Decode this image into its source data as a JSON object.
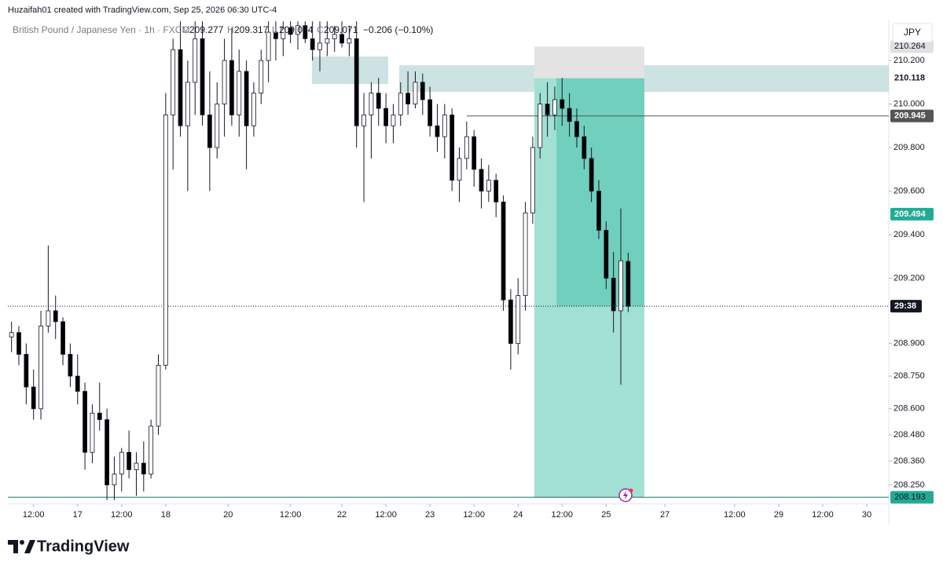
{
  "header": "Huzaifah01 created with TradingView.com, Sep 25, 2026 06:30 UTC-4",
  "brand": "TradingView",
  "chart_data": {
    "type": "candlestick",
    "title": "British Pound / Japanese Yen · 1h · FXCM",
    "currency": "JPY",
    "legend": [
      {
        "label": "O",
        "value": 209.277
      },
      {
        "label": "H",
        "value": 209.317
      },
      {
        "label": "L",
        "value": 209.044
      },
      {
        "label": "C",
        "value": 209.071
      }
    ],
    "change": "−0.206 (−0.10%)",
    "countdown": "29:38",
    "up_color": "#ffffff",
    "down_color": "#000000",
    "open": [
      208.93,
      208.95,
      208.85,
      208.7,
      208.6,
      208.98,
      209.05,
      209.0,
      208.85,
      208.75,
      208.68,
      208.4,
      208.58,
      208.55,
      208.25,
      208.3,
      208.4,
      208.32,
      208.35,
      208.3,
      208.52,
      208.8,
      209.95,
      210.25,
      209.9,
      210.1,
      210.3,
      209.95,
      209.8,
      210.0,
      210.2,
      209.95,
      210.15,
      209.9,
      210.05,
      210.2,
      210.33,
      210.3,
      210.35,
      210.32,
      210.36,
      210.3,
      210.25,
      210.28,
      210.3,
      210.32,
      210.28,
      210.3,
      209.9,
      209.95,
      210.05,
      209.98,
      209.9,
      209.95,
      210.05,
      210.0,
      210.1,
      210.02,
      209.9,
      209.85,
      209.95,
      209.65,
      209.75,
      209.85,
      209.7,
      209.6,
      209.65,
      209.55,
      209.1,
      208.9,
      209.12,
      209.5,
      209.8,
      210.0,
      209.95,
      210.02,
      209.98,
      209.92,
      209.85,
      209.75,
      209.6,
      209.42,
      209.2,
      209.05,
      209.277
    ],
    "high": [
      209.0,
      208.98,
      208.9,
      208.78,
      209.05,
      209.35,
      209.12,
      209.02,
      208.9,
      208.85,
      208.72,
      208.62,
      208.72,
      208.6,
      208.38,
      208.42,
      208.5,
      208.4,
      208.45,
      208.55,
      208.85,
      210.05,
      210.3,
      210.38,
      210.2,
      210.38,
      210.38,
      210.15,
      210.1,
      210.3,
      210.35,
      210.25,
      210.2,
      210.1,
      210.25,
      210.38,
      210.38,
      210.38,
      210.38,
      210.38,
      210.38,
      210.38,
      210.38,
      210.38,
      210.36,
      210.38,
      210.36,
      210.38,
      210.05,
      210.1,
      210.12,
      210.05,
      210.0,
      210.1,
      210.15,
      210.15,
      210.14,
      210.08,
      210.0,
      210.0,
      209.98,
      209.8,
      209.92,
      209.88,
      209.75,
      209.72,
      209.68,
      209.58,
      209.15,
      209.2,
      209.55,
      209.85,
      210.05,
      210.1,
      210.08,
      210.12,
      210.05,
      209.98,
      209.9,
      209.8,
      209.65,
      209.46,
      209.32,
      209.52,
      209.317
    ],
    "low": [
      208.86,
      208.8,
      208.62,
      208.55,
      208.55,
      208.95,
      208.92,
      208.8,
      208.7,
      208.62,
      208.32,
      208.35,
      208.5,
      208.18,
      208.18,
      208.22,
      208.28,
      208.2,
      208.22,
      208.28,
      208.48,
      208.78,
      209.7,
      209.85,
      209.6,
      209.95,
      209.9,
      209.6,
      209.75,
      209.85,
      209.9,
      209.85,
      209.7,
      209.85,
      210.0,
      210.1,
      210.2,
      210.22,
      210.28,
      210.25,
      210.28,
      210.2,
      210.15,
      210.22,
      210.24,
      210.26,
      210.22,
      209.8,
      209.55,
      209.75,
      209.9,
      209.82,
      209.82,
      209.9,
      209.95,
      209.98,
      209.95,
      209.85,
      209.78,
      209.75,
      209.6,
      209.55,
      209.7,
      209.62,
      209.52,
      209.55,
      209.48,
      209.05,
      208.78,
      208.85,
      209.05,
      209.45,
      209.75,
      209.85,
      209.88,
      209.9,
      209.85,
      209.8,
      209.7,
      209.55,
      209.38,
      209.15,
      208.95,
      208.71,
      209.044
    ],
    "close": [
      208.95,
      208.85,
      208.7,
      208.6,
      208.98,
      209.05,
      209.0,
      208.85,
      208.75,
      208.68,
      208.4,
      208.58,
      208.55,
      208.25,
      208.3,
      208.4,
      208.32,
      208.35,
      208.3,
      208.52,
      208.8,
      209.95,
      210.25,
      209.9,
      210.1,
      210.3,
      209.95,
      209.8,
      210.0,
      210.2,
      209.95,
      210.15,
      209.9,
      210.05,
      210.2,
      210.33,
      210.3,
      210.35,
      210.32,
      210.36,
      210.3,
      210.25,
      210.28,
      210.3,
      210.32,
      210.28,
      210.3,
      209.9,
      209.95,
      210.05,
      209.98,
      209.9,
      209.95,
      210.05,
      210.0,
      210.1,
      210.02,
      209.9,
      209.85,
      209.95,
      209.65,
      209.75,
      209.85,
      209.7,
      209.6,
      209.65,
      209.55,
      209.1,
      208.9,
      209.12,
      209.5,
      209.8,
      210.0,
      209.95,
      210.02,
      209.98,
      209.92,
      209.85,
      209.75,
      209.6,
      209.42,
      209.2,
      209.05,
      209.28,
      209.071
    ],
    "xlim": [
      -0.5,
      119.5
    ],
    "xticks": [
      {
        "value": 3,
        "label": "12:00"
      },
      {
        "value": 9,
        "label": "17"
      },
      {
        "value": 15,
        "label": "12:00"
      },
      {
        "value": 21,
        "label": "18"
      },
      {
        "value": 29.5,
        "label": "20"
      },
      {
        "value": 38,
        "label": "12:00"
      },
      {
        "value": 45,
        "label": "22"
      },
      {
        "value": 51,
        "label": "12:00"
      },
      {
        "value": 57,
        "label": "23"
      },
      {
        "value": 63,
        "label": "12:00"
      },
      {
        "value": 69,
        "label": "24"
      },
      {
        "value": 75,
        "label": "12:00"
      },
      {
        "value": 81,
        "label": "25"
      },
      {
        "value": 89,
        "label": "27"
      },
      {
        "value": 98.5,
        "label": "12:00"
      },
      {
        "value": 104.5,
        "label": "29"
      },
      {
        "value": 110.5,
        "label": "12:00"
      },
      {
        "value": 116.5,
        "label": "30"
      }
    ],
    "ylim": [
      208.181,
      210.377
    ],
    "yticks": [
      {
        "value": 208.25,
        "label": "208.250"
      },
      {
        "value": 208.36,
        "label": "208.360"
      },
      {
        "value": 208.48,
        "label": "208.480"
      },
      {
        "value": 208.6,
        "label": "208.600"
      },
      {
        "value": 208.75,
        "label": "208.750"
      },
      {
        "value": 208.9,
        "label": "208.900"
      },
      {
        "value": 209.2,
        "label": "209.200"
      },
      {
        "value": 209.4,
        "label": "209.400"
      },
      {
        "value": 209.6,
        "label": "209.600"
      },
      {
        "value": 209.8,
        "label": "209.800"
      },
      {
        "value": 210,
        "label": "210.000"
      },
      {
        "value": 210.2,
        "label": "210.200"
      }
    ],
    "zones": [
      {
        "top": 210.218,
        "bottom": 210.092
      },
      {
        "top": 210.178,
        "bottom": 210.056
      }
    ],
    "position": {
      "stop": 210.264,
      "entry": 210.118,
      "target": 208.193
    },
    "level": 209.945,
    "marker": 209.494
  }
}
